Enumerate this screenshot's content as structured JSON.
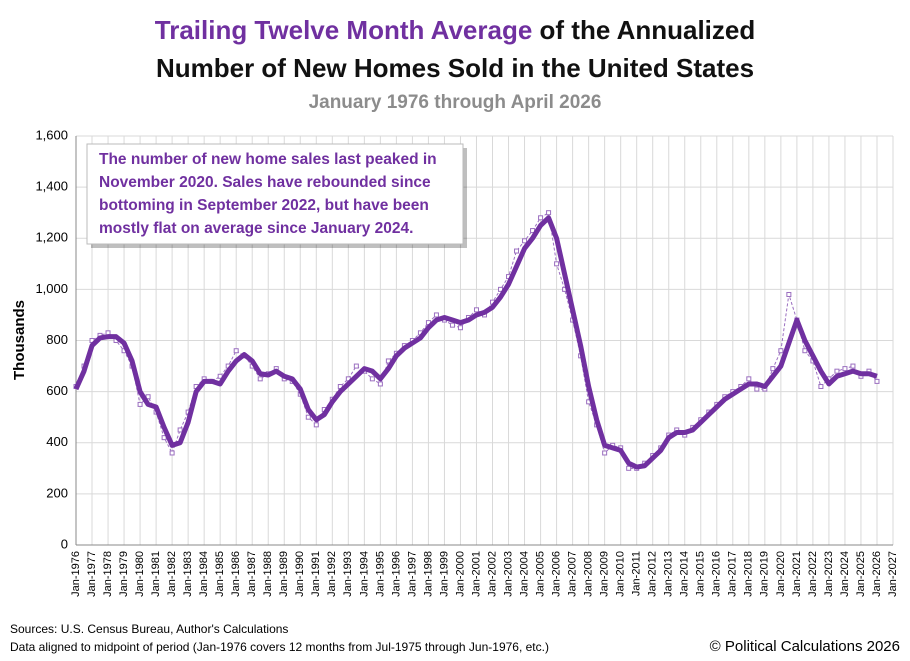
{
  "chart_data": {
    "type": "line",
    "title": [
      "Trailing Twelve Month Average",
      "of the Annualized",
      "Number of New Homes Sold in the United States"
    ],
    "subtitle": "January 1976 through April 2026",
    "ylabel": "Thousands",
    "annotation": [
      "The number of new home sales last peaked in",
      "November 2020. Sales have rebounded since",
      "bottoming in September 2022, but have been",
      "mostly flat on average since January 2024."
    ],
    "sources": [
      "Sources: U.S. Census Bureau, Author's Calculations",
      "Data aligned to midpoint of period (Jan-1976 covers 12 months from Jul-1975 through Jun-1976, etc.)"
    ],
    "copyright": "© Political Calculations 2026",
    "grid": true,
    "ylim": [
      0,
      1600
    ],
    "yticks": [
      0,
      200,
      400,
      600,
      800,
      {
        "value": 1000,
        "label": "1,000"
      },
      {
        "value": 1200,
        "label": "1,200"
      },
      {
        "value": 1400,
        "label": "1,400"
      },
      {
        "value": 1600,
        "label": "1,600"
      }
    ],
    "xlim": [
      1976,
      2027
    ],
    "xticks": [
      {
        "value": 1976,
        "label": "Jan-1976"
      },
      {
        "value": 1977,
        "label": "Jan-1977"
      },
      {
        "value": 1978,
        "label": "Jan-1978"
      },
      {
        "value": 1979,
        "label": "Jan-1979"
      },
      {
        "value": 1980,
        "label": "Jan-1980"
      },
      {
        "value": 1981,
        "label": "Jan-1981"
      },
      {
        "value": 1982,
        "label": "Jan-1982"
      },
      {
        "value": 1983,
        "label": "Jan-1983"
      },
      {
        "value": 1984,
        "label": "Jan-1984"
      },
      {
        "value": 1985,
        "label": "Jan-1985"
      },
      {
        "value": 1986,
        "label": "Jan-1986"
      },
      {
        "value": 1987,
        "label": "Jan-1987"
      },
      {
        "value": 1988,
        "label": "Jan-1988"
      },
      {
        "value": 1989,
        "label": "Jan-1989"
      },
      {
        "value": 1990,
        "label": "Jan-1990"
      },
      {
        "value": 1991,
        "label": "Jan-1991"
      },
      {
        "value": 1992,
        "label": "Jan-1992"
      },
      {
        "value": 1993,
        "label": "Jan-1993"
      },
      {
        "value": 1994,
        "label": "Jan-1994"
      },
      {
        "value": 1995,
        "label": "Jan-1995"
      },
      {
        "value": 1996,
        "label": "Jan-1996"
      },
      {
        "value": 1997,
        "label": "Jan-1997"
      },
      {
        "value": 1998,
        "label": "Jan-1998"
      },
      {
        "value": 1999,
        "label": "Jan-1999"
      },
      {
        "value": 2000,
        "label": "Jan-2000"
      },
      {
        "value": 2001,
        "label": "Jan-2001"
      },
      {
        "value": 2002,
        "label": "Jan-2002"
      },
      {
        "value": 2003,
        "label": "Jan-2003"
      },
      {
        "value": 2004,
        "label": "Jan-2004"
      },
      {
        "value": 2005,
        "label": "Jan-2005"
      },
      {
        "value": 2006,
        "label": "Jan-2006"
      },
      {
        "value": 2007,
        "label": "Jan-2007"
      },
      {
        "value": 2008,
        "label": "Jan-2008"
      },
      {
        "value": 2009,
        "label": "Jan-2009"
      },
      {
        "value": 2010,
        "label": "Jan-2010"
      },
      {
        "value": 2011,
        "label": "Jan-2011"
      },
      {
        "value": 2012,
        "label": "Jan-2012"
      },
      {
        "value": 2013,
        "label": "Jan-2013"
      },
      {
        "value": 2014,
        "label": "Jan-2014"
      },
      {
        "value": 2015,
        "label": "Jan-2015"
      },
      {
        "value": 2016,
        "label": "Jan-2016"
      },
      {
        "value": 2017,
        "label": "Jan-2017"
      },
      {
        "value": 2018,
        "label": "Jan-2018"
      },
      {
        "value": 2019,
        "label": "Jan-2019"
      },
      {
        "value": 2020,
        "label": "Jan-2020"
      },
      {
        "value": 2021,
        "label": "Jan-2021"
      },
      {
        "value": 2022,
        "label": "Jan-2022"
      },
      {
        "value": 2023,
        "label": "Jan-2023"
      },
      {
        "value": 2024,
        "label": "Jan-2024"
      },
      {
        "value": 2025,
        "label": "Jan-2025"
      },
      {
        "value": 2026,
        "label": "Jan-2026"
      },
      {
        "value": 2027,
        "label": "Jan-2027"
      }
    ],
    "x": [
      1976,
      1976.5,
      1977,
      1977.5,
      1978,
      1978.5,
      1979,
      1979.5,
      1980,
      1980.5,
      1981,
      1981.5,
      1982,
      1982.5,
      1983,
      1983.5,
      1984,
      1984.5,
      1985,
      1985.5,
      1986,
      1986.5,
      1987,
      1987.5,
      1988,
      1988.5,
      1989,
      1989.5,
      1990,
      1990.5,
      1991,
      1991.5,
      1992,
      1992.5,
      1993,
      1993.5,
      1994,
      1994.5,
      1995,
      1995.5,
      1996,
      1996.5,
      1997,
      1997.5,
      1998,
      1998.5,
      1999,
      1999.5,
      2000,
      2000.5,
      2001,
      2001.5,
      2002,
      2002.5,
      2003,
      2003.5,
      2004,
      2004.5,
      2005,
      2005.5,
      2006,
      2006.5,
      2007,
      2007.5,
      2008,
      2008.5,
      2009,
      2009.5,
      2010,
      2010.5,
      2011,
      2011.5,
      2012,
      2012.5,
      2013,
      2013.5,
      2014,
      2014.5,
      2015,
      2015.5,
      2016,
      2016.5,
      2017,
      2017.5,
      2018,
      2018.5,
      2019,
      2019.5,
      2020,
      2020.5,
      2021,
      2021.5,
      2022,
      2022.5,
      2023,
      2023.5,
      2024,
      2024.5,
      2025,
      2025.5,
      2026
    ],
    "series": [
      {
        "color": "#9b6fc0",
        "style": "markers",
        "values": [
          620,
          700,
          800,
          820,
          830,
          800,
          760,
          700,
          550,
          580,
          520,
          420,
          360,
          450,
          520,
          620,
          650,
          640,
          660,
          700,
          760,
          740,
          700,
          650,
          670,
          690,
          650,
          640,
          590,
          500,
          470,
          530,
          570,
          620,
          650,
          700,
          680,
          650,
          630,
          720,
          750,
          780,
          800,
          830,
          870,
          900,
          880,
          860,
          850,
          890,
          920,
          900,
          950,
          1000,
          1050,
          1150,
          1190,
          1230,
          1280,
          1300,
          1100,
          1000,
          880,
          740,
          560,
          470,
          360,
          390,
          380,
          300,
          300,
          320,
          350,
          380,
          430,
          450,
          430,
          460,
          490,
          520,
          550,
          580,
          600,
          620,
          650,
          610,
          610,
          690,
          760,
          980,
          880,
          760,
          720,
          620,
          650,
          680,
          690,
          700,
          660,
          680,
          640
        ]
      },
      {
        "color": "#7030a0",
        "style": "thick",
        "values": [
          610,
          680,
          780,
          810,
          815,
          815,
          790,
          720,
          600,
          550,
          540,
          460,
          390,
          400,
          480,
          600,
          640,
          640,
          630,
          680,
          720,
          745,
          720,
          670,
          665,
          680,
          660,
          650,
          610,
          530,
          490,
          510,
          560,
          600,
          630,
          660,
          690,
          680,
          650,
          690,
          740,
          770,
          790,
          810,
          850,
          880,
          890,
          880,
          870,
          880,
          900,
          910,
          930,
          970,
          1020,
          1090,
          1160,
          1200,
          1250,
          1280,
          1200,
          1060,
          920,
          780,
          620,
          490,
          390,
          380,
          370,
          320,
          305,
          310,
          340,
          370,
          420,
          440,
          440,
          450,
          480,
          510,
          540,
          570,
          590,
          610,
          630,
          630,
          620,
          660,
          700,
          790,
          880,
          800,
          740,
          680,
          630,
          660,
          670,
          680,
          670,
          670,
          660
        ]
      }
    ]
  }
}
